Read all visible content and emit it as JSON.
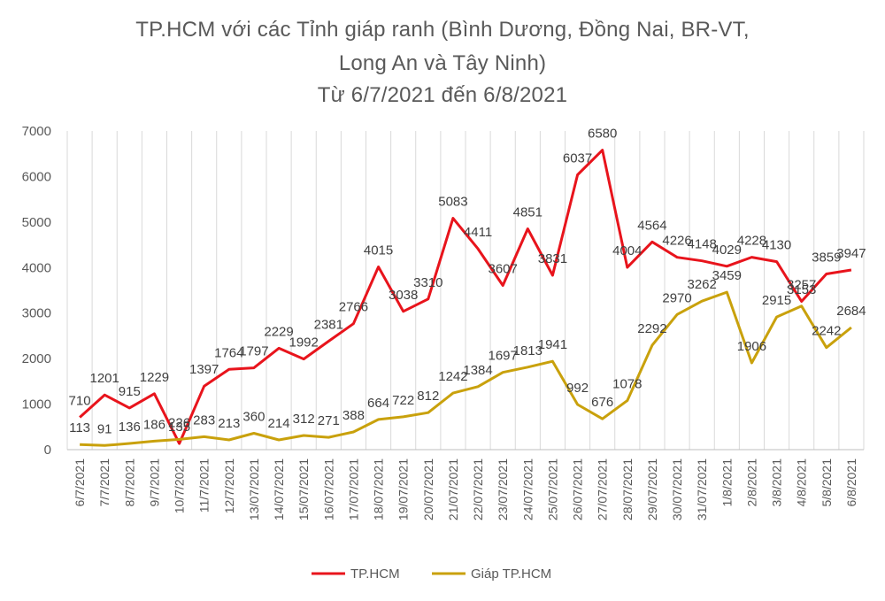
{
  "chart_data": {
    "type": "line",
    "title_lines": [
      "TP.HCM với các Tỉnh giáp ranh (Bình Dương, Đồng Nai, BR-VT,",
      "Long An và Tây Ninh)",
      "Từ 6/7/2021 đến 6/8/2021"
    ],
    "xlabel": "",
    "ylabel": "",
    "ylim": [
      0,
      7000
    ],
    "yticks": [
      "0",
      "1000",
      "2000",
      "3000",
      "4000",
      "5000",
      "6000",
      "7000"
    ],
    "grid": "vertical",
    "legend_position": "bottom",
    "categories": [
      "6/7/2021",
      "7/7/2021",
      "8/7/2021",
      "9/7/2021",
      "10/7/2021",
      "11/7/2021",
      "12/7/2021",
      "13/07/2021",
      "14/07/2021",
      "15/07/2021",
      "16/07/2021",
      "17/07/2021",
      "18/07/2021",
      "19/07/2021",
      "20/07/2021",
      "21/07/2021",
      "22/07/2021",
      "23/07/2021",
      "24/07/2021",
      "25/07/2021",
      "26/07/2021",
      "27/07/2021",
      "28/07/2021",
      "29/07/2021",
      "30/07/2021",
      "31/07/2021",
      "1/8/2021",
      "2/8/2021",
      "3/8/2021",
      "4/8/2021",
      "5/8/2021",
      "6/8/2021"
    ],
    "series": [
      {
        "name": "TP.HCM",
        "color": "#e8141c",
        "values": [
          710,
          1201,
          915,
          1229,
          135,
          1397,
          1764,
          1797,
          2229,
          1992,
          2381,
          2766,
          4015,
          3038,
          3310,
          5083,
          4411,
          3607,
          4851,
          3831,
          6037,
          6580,
          4004,
          4564,
          4226,
          4148,
          4029,
          4228,
          4130,
          3257,
          3859,
          3947
        ]
      },
      {
        "name": "Giáp TP.HCM",
        "color": "#c9a10c",
        "values": [
          113,
          91,
          136,
          186,
          226,
          283,
          213,
          360,
          214,
          312,
          271,
          388,
          664,
          722,
          812,
          1242,
          1384,
          1697,
          1813,
          1941,
          992,
          676,
          1078,
          2292,
          2970,
          3262,
          3459,
          1906,
          2915,
          3153,
          2242,
          2684
        ]
      }
    ]
  }
}
